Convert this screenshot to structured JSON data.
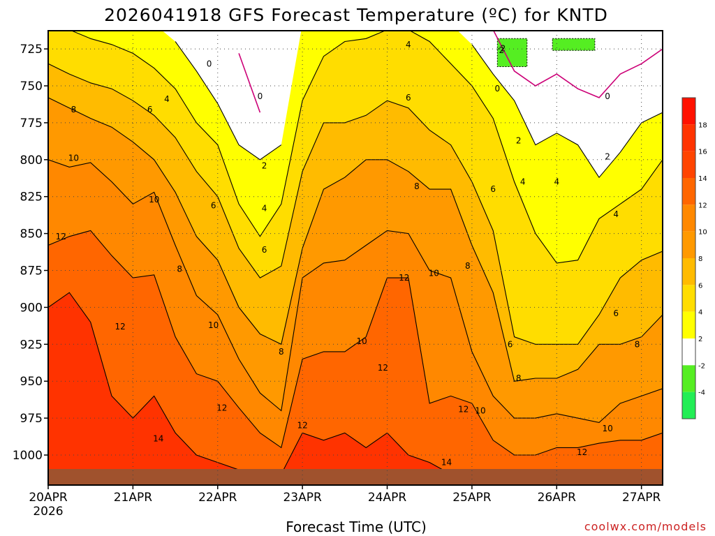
{
  "chart_data": {
    "type": "heatmap",
    "title": "2026041918 GFS Forecast Temperature (ºC) for KNTD",
    "xlabel": "Forecast Time (UTC)",
    "ylabel": "",
    "credit": "coolwx.com/models",
    "y_axis": {
      "scale": "pressure (hPa), inverted",
      "range": [
        1013,
        718
      ],
      "ticks": [
        "725",
        "750",
        "775",
        "800",
        "825",
        "850",
        "875",
        "900",
        "925",
        "950",
        "975",
        "1000"
      ]
    },
    "x_axis": {
      "range_days": [
        20,
        27.25
      ],
      "ticks": [
        {
          "day": 20,
          "label": "20APR",
          "sub": "2026"
        },
        {
          "day": 21,
          "label": "21APR",
          "sub": ""
        },
        {
          "day": 22,
          "label": "22APR",
          "sub": ""
        },
        {
          "day": 23,
          "label": "23APR",
          "sub": ""
        },
        {
          "day": 24,
          "label": "24APR",
          "sub": ""
        },
        {
          "day": 25,
          "label": "25APR",
          "sub": ""
        },
        {
          "day": 26,
          "label": "26APR",
          "sub": ""
        },
        {
          "day": 27,
          "label": "27APR",
          "sub": ""
        }
      ]
    },
    "grid": true,
    "colorbar": {
      "placement": "right",
      "bins": [
        {
          "min": -6,
          "max": -4,
          "color": "#22ee55"
        },
        {
          "min": -4,
          "max": -2,
          "color": "#55ee22"
        },
        {
          "min": -2,
          "max": 2,
          "color": "#ffffff"
        },
        {
          "min": 2,
          "max": 4,
          "color": "#ffff00"
        },
        {
          "min": 4,
          "max": 6,
          "color": "#ffdd00"
        },
        {
          "min": 6,
          "max": 8,
          "color": "#ffbb00"
        },
        {
          "min": 8,
          "max": 10,
          "color": "#ff9900"
        },
        {
          "min": 10,
          "max": 12,
          "color": "#ff8800"
        },
        {
          "min": 12,
          "max": 14,
          "color": "#ff6600"
        },
        {
          "min": 14,
          "max": 16,
          "color": "#ff4400"
        },
        {
          "min": 16,
          "max": 18,
          "color": "#ff3300"
        },
        {
          "min": 18,
          "max": 20,
          "color": "#ff1100"
        }
      ],
      "tick_labels": [
        "-4",
        "-2",
        "2",
        "4",
        "6",
        "8",
        "10",
        "12",
        "14",
        "16",
        "18"
      ]
    },
    "ground_color": "#a0522d",
    "zero_line_color": "#cc0077",
    "contour_levels": [
      0,
      2,
      4,
      6,
      8,
      10,
      12,
      14
    ],
    "contour_depth_hpa": [
      {
        "day": 20.0,
        "0": 0,
        "2": 0,
        "4": 705,
        "6": 735,
        "8": 758,
        "10": 800,
        "12": 858,
        "14": 900
      },
      {
        "day": 20.25,
        "0": 0,
        "2": 0,
        "4": 712,
        "6": 742,
        "8": 765,
        "10": 805,
        "12": 852,
        "14": 890
      },
      {
        "day": 20.5,
        "0": 0,
        "2": 0,
        "4": 718,
        "6": 748,
        "8": 772,
        "10": 802,
        "12": 848,
        "14": 910
      },
      {
        "day": 20.75,
        "0": 0,
        "2": 0,
        "4": 722,
        "6": 752,
        "8": 778,
        "10": 815,
        "12": 865,
        "14": 960
      },
      {
        "day": 21.0,
        "0": 0,
        "2": 0,
        "4": 728,
        "6": 760,
        "8": 788,
        "10": 830,
        "12": 880,
        "14": 975
      },
      {
        "day": 21.25,
        "0": 0,
        "2": 0,
        "4": 738,
        "6": 770,
        "8": 800,
        "10": 822,
        "12": 878,
        "14": 960
      },
      {
        "day": 21.5,
        "0": 0,
        "2": 720,
        "4": 752,
        "6": 785,
        "8": 822,
        "10": 858,
        "12": 920,
        "14": 985
      },
      {
        "day": 21.75,
        "0": 0,
        "2": 740,
        "4": 775,
        "6": 808,
        "8": 852,
        "10": 892,
        "12": 945,
        "14": 1000
      },
      {
        "day": 22.0,
        "0": 0,
        "2": 762,
        "4": 790,
        "6": 825,
        "8": 868,
        "10": 905,
        "12": 950,
        "14": 1005
      },
      {
        "day": 22.25,
        "0": 728,
        "2": 790,
        "4": 830,
        "6": 860,
        "8": 900,
        "10": 935,
        "12": 968,
        "14": 1010
      },
      {
        "day": 22.5,
        "0": 768,
        "2": 800,
        "4": 852,
        "6": 880,
        "8": 918,
        "10": 958,
        "12": 985,
        "14": 1013
      },
      {
        "day": 22.75,
        "0": 0,
        "2": 790,
        "4": 830,
        "6": 872,
        "8": 925,
        "10": 970,
        "12": 995,
        "14": 1013
      },
      {
        "day": 23.0,
        "0": 0,
        "2": 0,
        "4": 760,
        "6": 808,
        "8": 860,
        "10": 880,
        "12": 935,
        "14": 985
      },
      {
        "day": 23.25,
        "0": 0,
        "2": 0,
        "4": 730,
        "6": 775,
        "8": 820,
        "10": 870,
        "12": 930,
        "14": 990
      },
      {
        "day": 23.5,
        "0": 0,
        "2": 0,
        "4": 720,
        "6": 775,
        "8": 812,
        "10": 868,
        "12": 930,
        "14": 985
      },
      {
        "day": 23.75,
        "0": 0,
        "2": 0,
        "4": 718,
        "6": 770,
        "8": 800,
        "10": 858,
        "12": 920,
        "14": 995
      },
      {
        "day": 24.0,
        "0": 0,
        "2": 0,
        "4": 712,
        "6": 760,
        "8": 800,
        "10": 848,
        "12": 880,
        "14": 985
      },
      {
        "day": 24.25,
        "0": 0,
        "2": 0,
        "4": 712,
        "6": 765,
        "8": 808,
        "10": 850,
        "12": 880,
        "14": 1000
      },
      {
        "day": 24.5,
        "0": 0,
        "2": 0,
        "4": 720,
        "6": 780,
        "8": 820,
        "10": 875,
        "12": 965,
        "14": 1005
      },
      {
        "day": 24.75,
        "0": 0,
        "2": 0,
        "4": 735,
        "6": 790,
        "8": 820,
        "10": 880,
        "12": 960,
        "14": 1013
      },
      {
        "day": 25.0,
        "0": 0,
        "2": 722,
        "4": 750,
        "6": 815,
        "8": 858,
        "10": 930,
        "12": 965,
        "14": 1013
      },
      {
        "day": 25.25,
        "0": 712,
        "2": 742,
        "4": 772,
        "6": 848,
        "8": 890,
        "10": 960,
        "12": 990,
        "14": 1013
      },
      {
        "day": 25.5,
        "0": 740,
        "2": 760,
        "4": 815,
        "6": 920,
        "8": 950,
        "10": 975,
        "12": 1000,
        "14": 1013
      },
      {
        "day": 25.75,
        "0": 750,
        "2": 790,
        "4": 850,
        "6": 925,
        "8": 948,
        "10": 975,
        "12": 1000,
        "14": 1013
      },
      {
        "day": 26.0,
        "0": 742,
        "2": 782,
        "4": 870,
        "6": 925,
        "8": 948,
        "10": 972,
        "12": 995,
        "14": 1013
      },
      {
        "day": 26.25,
        "0": 752,
        "2": 790,
        "4": 868,
        "6": 925,
        "8": 942,
        "10": 975,
        "12": 995,
        "14": 1013
      },
      {
        "day": 26.5,
        "0": 758,
        "2": 812,
        "4": 840,
        "6": 905,
        "8": 925,
        "10": 978,
        "12": 992,
        "14": 1013
      },
      {
        "day": 26.75,
        "0": 742,
        "2": 795,
        "4": 830,
        "6": 880,
        "8": 925,
        "10": 965,
        "12": 990,
        "14": 1013
      },
      {
        "day": 27.0,
        "0": 735,
        "2": 775,
        "4": 820,
        "6": 868,
        "8": 920,
        "10": 960,
        "12": 990,
        "14": 1013
      },
      {
        "day": 27.25,
        "0": 725,
        "2": 768,
        "4": 800,
        "6": 862,
        "8": 905,
        "10": 955,
        "12": 985,
        "14": 1013
      }
    ],
    "green_patches": [
      {
        "day_start": 25.3,
        "day_end": 25.65,
        "p_top": 718,
        "p_bottom": 737,
        "label": "-2"
      },
      {
        "day_start": 25.95,
        "day_end": 26.45,
        "p_top": 718,
        "p_bottom": 726,
        "label": ""
      }
    ],
    "contour_labels": [
      {
        "text": "0",
        "day": 22.5,
        "p": 757
      },
      {
        "text": "0",
        "day": 21.9,
        "p": 735
      },
      {
        "text": "0",
        "day": 25.3,
        "p": 752
      },
      {
        "text": "0",
        "day": 26.6,
        "p": 757
      },
      {
        "text": "2",
        "day": 22.55,
        "p": 804
      },
      {
        "text": "2",
        "day": 25.55,
        "p": 787
      },
      {
        "text": "2",
        "day": 26.6,
        "p": 798
      },
      {
        "text": "2",
        "day": 25.35,
        "p": 726
      },
      {
        "text": "4",
        "day": 21.4,
        "p": 759
      },
      {
        "text": "4",
        "day": 22.55,
        "p": 833
      },
      {
        "text": "4",
        "day": 24.25,
        "p": 722
      },
      {
        "text": "4",
        "day": 25.6,
        "p": 815
      },
      {
        "text": "4",
        "day": 26.0,
        "p": 815
      },
      {
        "text": "4",
        "day": 26.7,
        "p": 837
      },
      {
        "text": "6",
        "day": 21.2,
        "p": 766
      },
      {
        "text": "6",
        "day": 21.95,
        "p": 831
      },
      {
        "text": "6",
        "day": 22.55,
        "p": 861
      },
      {
        "text": "6",
        "day": 24.25,
        "p": 758
      },
      {
        "text": "6",
        "day": 25.25,
        "p": 820
      },
      {
        "text": "6",
        "day": 25.45,
        "p": 925
      },
      {
        "text": "6",
        "day": 26.7,
        "p": 904
      },
      {
        "text": "8",
        "day": 20.3,
        "p": 766
      },
      {
        "text": "8",
        "day": 21.55,
        "p": 874
      },
      {
        "text": "8",
        "day": 22.75,
        "p": 930
      },
      {
        "text": "8",
        "day": 24.35,
        "p": 818
      },
      {
        "text": "8",
        "day": 24.95,
        "p": 872
      },
      {
        "text": "8",
        "day": 25.55,
        "p": 948
      },
      {
        "text": "8",
        "day": 26.95,
        "p": 925
      },
      {
        "text": "10",
        "day": 20.3,
        "p": 799
      },
      {
        "text": "10",
        "day": 21.25,
        "p": 827
      },
      {
        "text": "10",
        "day": 21.95,
        "p": 912
      },
      {
        "text": "10",
        "day": 23.7,
        "p": 923
      },
      {
        "text": "10",
        "day": 24.55,
        "p": 877
      },
      {
        "text": "10",
        "day": 25.1,
        "p": 970
      },
      {
        "text": "10",
        "day": 26.6,
        "p": 982
      },
      {
        "text": "12",
        "day": 20.15,
        "p": 852
      },
      {
        "text": "12",
        "day": 20.85,
        "p": 913
      },
      {
        "text": "12",
        "day": 22.05,
        "p": 968
      },
      {
        "text": "12",
        "day": 23.0,
        "p": 980
      },
      {
        "text": "12",
        "day": 23.95,
        "p": 941
      },
      {
        "text": "12",
        "day": 24.2,
        "p": 880
      },
      {
        "text": "12",
        "day": 24.9,
        "p": 969
      },
      {
        "text": "12",
        "day": 26.3,
        "p": 998
      },
      {
        "text": "14",
        "day": 21.3,
        "p": 989
      },
      {
        "text": "14",
        "day": 24.7,
        "p": 1005
      }
    ]
  }
}
